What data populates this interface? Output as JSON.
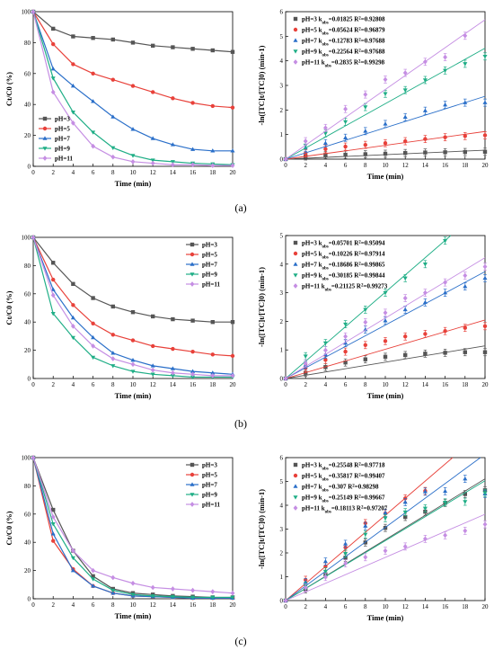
{
  "panel_labels": [
    "(a)",
    "(b)",
    "(c)"
  ],
  "colors": {
    "pH3": "#555555",
    "pH5": "#e8413a",
    "pH7": "#2a6fc9",
    "pH9": "#1fae86",
    "pH11": "#c58ee3"
  },
  "chart_data": [
    {
      "id": "a-left",
      "type": "line",
      "xlabel": "Time (min)",
      "ylabel": "Ct/C0 (%)",
      "xlim": [
        0,
        20
      ],
      "ylim": [
        0,
        100
      ],
      "xticks": [
        0,
        2,
        4,
        6,
        8,
        10,
        12,
        14,
        16,
        18,
        20
      ],
      "yticks": [
        0,
        20,
        40,
        60,
        80,
        100
      ],
      "x": [
        0,
        2,
        4,
        6,
        8,
        10,
        12,
        14,
        16,
        18,
        20
      ],
      "legend": "bottom-left",
      "series": [
        {
          "name": "pH=3",
          "values": [
            100,
            89,
            84,
            83,
            82,
            80,
            78,
            77,
            76,
            75,
            74
          ]
        },
        {
          "name": "pH=5",
          "values": [
            100,
            79,
            66,
            60,
            56,
            52,
            48,
            44,
            41,
            39,
            38
          ]
        },
        {
          "name": "pH=7",
          "values": [
            100,
            63,
            52,
            42,
            32,
            24,
            18,
            14,
            11,
            10,
            10
          ]
        },
        {
          "name": "pH=9",
          "values": [
            100,
            57,
            35,
            22,
            12,
            7,
            4,
            3,
            2,
            1.5,
            1
          ]
        },
        {
          "name": "pH=11",
          "values": [
            100,
            48,
            28,
            13,
            6,
            3,
            2,
            1,
            1,
            0.5,
            0.5
          ]
        }
      ]
    },
    {
      "id": "a-right",
      "type": "scatter",
      "xlabel": "Time (min)",
      "ylabel": "-ln([TC]t/[TC]0) (min-1)",
      "xlim": [
        0,
        20
      ],
      "ylim": [
        0,
        6
      ],
      "xticks": [
        0,
        2,
        4,
        6,
        8,
        10,
        12,
        14,
        16,
        18,
        20
      ],
      "yticks": [
        0,
        1,
        2,
        3,
        4,
        5,
        6
      ],
      "x": [
        0,
        2,
        4,
        6,
        8,
        10,
        12,
        14,
        16,
        18,
        20
      ],
      "legend": "top-left",
      "series": [
        {
          "name": "pH=3",
          "k": "0.01825",
          "r2": "0.92808",
          "slope": 0.01825,
          "values": [
            0,
            0.11,
            0.17,
            0.18,
            0.2,
            0.22,
            0.25,
            0.27,
            0.28,
            0.29,
            0.3
          ]
        },
        {
          "name": "pH=5",
          "k": "0.05624",
          "r2": "0.96879",
          "slope": 0.05624,
          "values": [
            0,
            0.23,
            0.41,
            0.51,
            0.58,
            0.65,
            0.73,
            0.82,
            0.89,
            0.94,
            0.97
          ]
        },
        {
          "name": "pH=7",
          "k": "0.12783",
          "r2": "0.97688",
          "slope": 0.12783,
          "values": [
            0,
            0.46,
            0.65,
            0.87,
            1.14,
            1.43,
            1.71,
            1.97,
            2.21,
            2.3,
            2.3
          ]
        },
        {
          "name": "pH=9",
          "k": "0.22564",
          "r2": "0.97688",
          "slope": 0.22564,
          "values": [
            0,
            0.56,
            1.05,
            1.52,
            2.12,
            2.66,
            2.81,
            3.22,
            3.61,
            3.88,
            4.18
          ]
        },
        {
          "name": "pH=11",
          "k": "0.2835",
          "r2": "0.99298",
          "slope": 0.2835,
          "values": [
            0,
            0.73,
            1.27,
            2.04,
            2.63,
            3.24,
            3.51,
            3.96,
            4.15,
            5.02,
            null
          ]
        }
      ]
    },
    {
      "id": "b-left",
      "type": "line",
      "xlabel": "Time (min)",
      "ylabel": "Ct/C0 (%)",
      "xlim": [
        0,
        20
      ],
      "ylim": [
        0,
        100
      ],
      "xticks": [
        0,
        2,
        4,
        6,
        8,
        10,
        12,
        14,
        16,
        18,
        20
      ],
      "yticks": [
        0,
        20,
        40,
        60,
        80,
        100
      ],
      "x": [
        0,
        2,
        4,
        6,
        8,
        10,
        12,
        14,
        16,
        18,
        20
      ],
      "legend": "top-right",
      "series": [
        {
          "name": "pH=3",
          "values": [
            100,
            82,
            67,
            57,
            51,
            47,
            44,
            42,
            41,
            40,
            40
          ]
        },
        {
          "name": "pH=5",
          "values": [
            100,
            70,
            52,
            39,
            31,
            27,
            23,
            21,
            19,
            17,
            16
          ]
        },
        {
          "name": "pH=7",
          "values": [
            100,
            63,
            43,
            29,
            18,
            13,
            9,
            7,
            5,
            4,
            3
          ]
        },
        {
          "name": "pH=9",
          "values": [
            100,
            46,
            29,
            15,
            9,
            5,
            3,
            2,
            1,
            1,
            1
          ]
        },
        {
          "name": "pH=11",
          "values": [
            100,
            59,
            37,
            23,
            14,
            10,
            6,
            4,
            3,
            2,
            2
          ]
        }
      ]
    },
    {
      "id": "b-right",
      "type": "scatter",
      "xlabel": "Time (min)",
      "ylabel": "-ln([TC]t/[TC]0) (min-1)",
      "xlim": [
        0,
        20
      ],
      "ylim": [
        0,
        5
      ],
      "xticks": [
        0,
        2,
        4,
        6,
        8,
        10,
        12,
        14,
        16,
        18,
        20
      ],
      "yticks": [
        0,
        1,
        2,
        3,
        4,
        5
      ],
      "x": [
        0,
        2,
        4,
        6,
        8,
        10,
        12,
        14,
        16,
        18,
        20
      ],
      "legend": "top-left",
      "series": [
        {
          "name": "pH=3",
          "k": "0.05701",
          "r2": "0.95094",
          "slope": 0.05701,
          "values": [
            0,
            0.2,
            0.4,
            0.56,
            0.67,
            0.76,
            0.82,
            0.87,
            0.9,
            0.92,
            0.92
          ]
        },
        {
          "name": "pH=5",
          "k": "0.10226",
          "r2": "0.97914",
          "slope": 0.10226,
          "values": [
            0,
            0.36,
            0.65,
            0.94,
            1.17,
            1.31,
            1.47,
            1.56,
            1.66,
            1.77,
            1.83
          ]
        },
        {
          "name": "pH=7",
          "k": "0.18686",
          "r2": "0.99865",
          "slope": 0.18686,
          "values": [
            0,
            0.47,
            0.84,
            1.24,
            1.71,
            2.02,
            2.41,
            2.66,
            3.0,
            3.22,
            3.51
          ]
        },
        {
          "name": "pH=9",
          "k": "0.30185",
          "r2": "0.99844",
          "slope": 0.30185,
          "values": [
            0,
            0.78,
            1.24,
            1.9,
            2.41,
            3.0,
            3.51,
            4.0,
            4.82,
            null,
            null
          ]
        },
        {
          "name": "pH=11",
          "k": "0.21125",
          "r2": "0.99273",
          "slope": 0.21125,
          "values": [
            0,
            0.53,
            0.99,
            1.47,
            1.97,
            2.3,
            2.81,
            3.0,
            3.36,
            3.6,
            3.91
          ]
        }
      ]
    },
    {
      "id": "c-left",
      "type": "line",
      "xlabel": "Time (min)",
      "ylabel": "Ct/C0 (%)",
      "xlim": [
        0,
        20
      ],
      "ylim": [
        0,
        100
      ],
      "xticks": [
        0,
        2,
        4,
        6,
        8,
        10,
        12,
        14,
        16,
        18,
        20
      ],
      "yticks": [
        0,
        20,
        40,
        60,
        80,
        100
      ],
      "x": [
        0,
        2,
        4,
        6,
        8,
        10,
        12,
        14,
        16,
        18,
        20
      ],
      "legend": "top-right",
      "series": [
        {
          "name": "pH=3",
          "values": [
            100,
            63,
            34,
            16,
            7,
            4,
            3,
            2,
            1.5,
            1,
            1
          ]
        },
        {
          "name": "pH=5",
          "values": [
            100,
            41,
            21,
            9,
            4,
            2,
            1.5,
            1,
            0.5,
            0.5,
            0.5
          ]
        },
        {
          "name": "pH=7",
          "values": [
            100,
            46,
            20,
            9,
            4,
            2,
            1.5,
            1,
            0.5,
            0.5,
            0.5
          ]
        },
        {
          "name": "pH=9",
          "values": [
            100,
            53,
            29,
            14,
            6,
            3,
            2,
            1.5,
            1,
            1,
            1
          ]
        },
        {
          "name": "pH=11",
          "values": [
            100,
            58,
            34,
            20,
            15,
            11,
            8,
            7,
            6,
            5,
            4
          ]
        }
      ]
    },
    {
      "id": "c-right",
      "type": "scatter",
      "xlabel": "Time (min)",
      "ylabel": "-ln([TC]t/[TC]0) (min-1)",
      "xlim": [
        0,
        20
      ],
      "ylim": [
        0,
        6
      ],
      "xticks": [
        0,
        2,
        4,
        6,
        8,
        10,
        12,
        14,
        16,
        18,
        20
      ],
      "yticks": [
        0,
        1,
        2,
        3,
        4,
        5,
        6
      ],
      "x": [
        0,
        2,
        4,
        6,
        8,
        10,
        12,
        14,
        16,
        18,
        20
      ],
      "legend": "top-left",
      "series": [
        {
          "name": "pH=3",
          "k": "0.25548",
          "r2": "0.97718",
          "slope": 0.25548,
          "values": [
            0,
            0.47,
            1.1,
            1.8,
            2.44,
            3.05,
            3.51,
            3.73,
            4.1,
            4.47,
            4.63
          ]
        },
        {
          "name": "pH=5",
          "k": "0.35817",
          "r2": "0.99407",
          "slope": 0.35817,
          "values": [
            0,
            0.87,
            1.43,
            2.23,
            3.25,
            3.66,
            4.29,
            4.6,
            null,
            null,
            null
          ]
        },
        {
          "name": "pH=7",
          "k": "0.307",
          "r2": "0.98298",
          "slope": 0.307,
          "values": [
            0,
            0.77,
            1.64,
            2.38,
            3.13,
            3.68,
            4.13,
            4.57,
            4.59,
            5.11,
            4.48
          ]
        },
        {
          "name": "pH=9",
          "k": "0.25149",
          "r2": "0.99667",
          "slope": 0.25149,
          "values": [
            0,
            0.63,
            1.22,
            1.97,
            2.78,
            3.46,
            3.71,
            3.87,
            4.12,
            4.15,
            4.52
          ]
        },
        {
          "name": "pH=11",
          "k": "0.18113",
          "r2": "0.97207",
          "slope": 0.18113,
          "values": [
            0,
            0.54,
            0.99,
            1.56,
            1.82,
            2.09,
            2.27,
            2.59,
            2.74,
            2.93,
            3.2
          ]
        }
      ]
    }
  ]
}
